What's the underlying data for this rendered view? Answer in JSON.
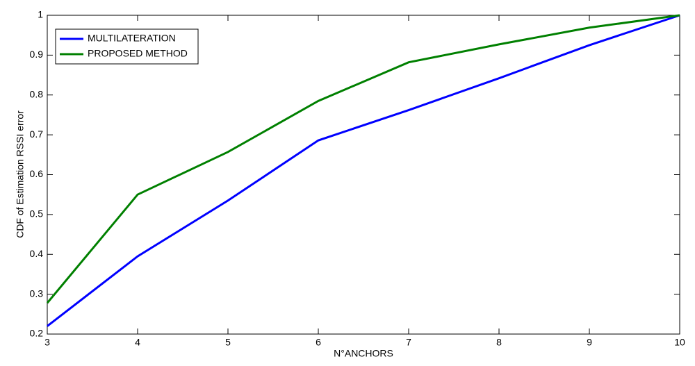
{
  "chart_data": {
    "type": "line",
    "xlabel": "N°ANCHORS",
    "ylabel": "CDF of Estimation RSSI error",
    "x": [
      3,
      4,
      5,
      6,
      7,
      8,
      9,
      10
    ],
    "series": [
      {
        "name": "MULTILATERATION",
        "color": "#0000ff",
        "values": [
          0.22,
          0.395,
          0.535,
          0.686,
          0.762,
          0.842,
          0.925,
          1.0
        ]
      },
      {
        "name": "PROPOSED METHOD",
        "color": "#008000",
        "values": [
          0.278,
          0.55,
          0.657,
          0.785,
          0.882,
          0.927,
          0.969,
          1.0
        ]
      }
    ],
    "xlim": [
      3,
      10
    ],
    "xticks": [
      3,
      4,
      5,
      6,
      7,
      8,
      9,
      10
    ],
    "ylim": [
      0.2,
      1
    ],
    "yticks": [
      0.2,
      0.3,
      0.4,
      0.5,
      0.6,
      0.7,
      0.8,
      0.9,
      1
    ],
    "grid": false,
    "legend": "top-left"
  }
}
